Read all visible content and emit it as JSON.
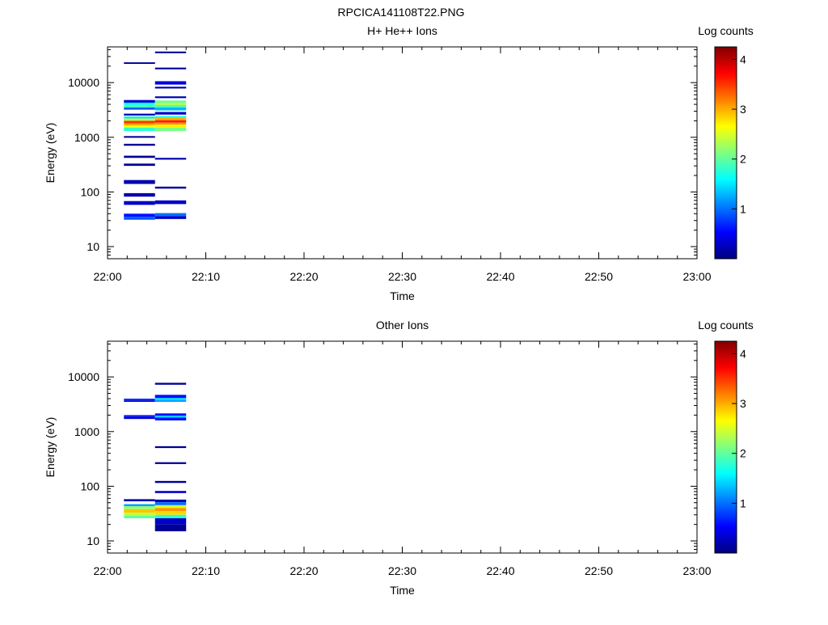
{
  "figure_title": "RPCICA141108T22.PNG",
  "colorbar_ticks": [
    "1",
    "2",
    "3",
    "4"
  ],
  "palette": [
    "#00007f",
    "#0000ff",
    "#007fff",
    "#00ffff",
    "#7fff7f",
    "#ffff00",
    "#ff7f00",
    "#ff0000",
    "#7f0000"
  ],
  "chart_data": [
    {
      "type": "heatmap",
      "title": "H+ He++ Ions",
      "xlabel": "Time",
      "ylabel": "Energy (eV)",
      "colorbar_label": "Log counts",
      "xlim": [
        "22:00",
        "23:00"
      ],
      "x_ticks": [
        "22:00",
        "22:10",
        "22:20",
        "22:30",
        "22:40",
        "22:50",
        "23:00"
      ],
      "ylim": [
        6,
        45000
      ],
      "y_scale": "log",
      "y_ticks": [
        "10",
        "100",
        "1000",
        "10000"
      ],
      "clim": [
        0,
        4.25
      ],
      "columns": [
        {
          "t_start": "22:01:40",
          "t_end": "22:04:50",
          "bins": [
            {
              "e_low": 22000,
              "e_high": 23500,
              "value": 0.1
            },
            {
              "e_low": 4300,
              "e_high": 4800,
              "value": 0.3
            },
            {
              "e_low": 3900,
              "e_high": 4300,
              "value": 1.6
            },
            {
              "e_low": 3500,
              "e_high": 3900,
              "value": 1.9
            },
            {
              "e_low": 3200,
              "e_high": 3500,
              "value": 0.9
            },
            {
              "e_low": 2500,
              "e_high": 2700,
              "value": 0.2
            },
            {
              "e_low": 2200,
              "e_high": 2400,
              "value": 1.5
            },
            {
              "e_low": 2000,
              "e_high": 2200,
              "value": 2.4
            },
            {
              "e_low": 1800,
              "e_high": 2000,
              "value": 3.5
            },
            {
              "e_low": 1650,
              "e_high": 1800,
              "value": 3.0
            },
            {
              "e_low": 1500,
              "e_high": 1650,
              "value": 2.6
            },
            {
              "e_low": 1300,
              "e_high": 1500,
              "value": 1.8
            },
            {
              "e_low": 980,
              "e_high": 1050,
              "value": 0.1
            },
            {
              "e_low": 700,
              "e_high": 760,
              "value": 0.1
            },
            {
              "e_low": 420,
              "e_high": 460,
              "value": 0.1
            },
            {
              "e_low": 300,
              "e_high": 330,
              "value": 0.1
            },
            {
              "e_low": 140,
              "e_high": 165,
              "value": 0.2
            },
            {
              "e_low": 82,
              "e_high": 95,
              "value": 0.2
            },
            {
              "e_low": 58,
              "e_high": 68,
              "value": 0.3
            },
            {
              "e_low": 35,
              "e_high": 40,
              "value": 0.6
            },
            {
              "e_low": 31,
              "e_high": 35,
              "value": 0.9
            }
          ]
        },
        {
          "t_start": "22:04:50",
          "t_end": "22:08:00",
          "bins": [
            {
              "e_low": 34500,
              "e_high": 37000,
              "value": 0.1
            },
            {
              "e_low": 17500,
              "e_high": 18800,
              "value": 0.1
            },
            {
              "e_low": 9200,
              "e_high": 10600,
              "value": 0.4
            },
            {
              "e_low": 7800,
              "e_high": 8400,
              "value": 0.2
            },
            {
              "e_low": 5200,
              "e_high": 5600,
              "value": 0.2
            },
            {
              "e_low": 4300,
              "e_high": 4700,
              "value": 2.0
            },
            {
              "e_low": 3900,
              "e_high": 4300,
              "value": 2.4
            },
            {
              "e_low": 3500,
              "e_high": 3900,
              "value": 1.9
            },
            {
              "e_low": 3100,
              "e_high": 3500,
              "value": 1.3
            },
            {
              "e_low": 2600,
              "e_high": 2900,
              "value": 0.3
            },
            {
              "e_low": 2250,
              "e_high": 2450,
              "value": 1.7
            },
            {
              "e_low": 2050,
              "e_high": 2250,
              "value": 3.0
            },
            {
              "e_low": 1850,
              "e_high": 2050,
              "value": 3.6
            },
            {
              "e_low": 1700,
              "e_high": 1850,
              "value": 3.1
            },
            {
              "e_low": 1500,
              "e_high": 1700,
              "value": 2.7
            },
            {
              "e_low": 1300,
              "e_high": 1500,
              "value": 2.1
            },
            {
              "e_low": 390,
              "e_high": 420,
              "value": 0.2
            },
            {
              "e_low": 115,
              "e_high": 125,
              "value": 0.1
            },
            {
              "e_low": 60,
              "e_high": 70,
              "value": 0.3
            },
            {
              "e_low": 36,
              "e_high": 41,
              "value": 1.0
            },
            {
              "e_low": 32,
              "e_high": 36,
              "value": 0.3
            }
          ]
        }
      ]
    },
    {
      "type": "heatmap",
      "title": "Other Ions",
      "xlabel": "Time",
      "ylabel": "Energy (eV)",
      "colorbar_label": "Log counts",
      "xlim": [
        "22:00",
        "23:00"
      ],
      "x_ticks": [
        "22:00",
        "22:10",
        "22:20",
        "22:30",
        "22:40",
        "22:50",
        "23:00"
      ],
      "ylim": [
        6,
        45000
      ],
      "y_scale": "log",
      "y_ticks": [
        "10",
        "100",
        "1000",
        "10000"
      ],
      "clim": [
        0,
        4.25
      ],
      "columns": [
        {
          "t_start": "22:01:40",
          "t_end": "22:04:50",
          "bins": [
            {
              "e_low": 3700,
              "e_high": 4000,
              "value": 0.7
            },
            {
              "e_low": 3500,
              "e_high": 3700,
              "value": 0.3
            },
            {
              "e_low": 1850,
              "e_high": 2000,
              "value": 0.6
            },
            {
              "e_low": 1700,
              "e_high": 1850,
              "value": 0.3
            },
            {
              "e_low": 53,
              "e_high": 58,
              "value": 0.2
            },
            {
              "e_low": 43,
              "e_high": 47,
              "value": 1.2
            },
            {
              "e_low": 38,
              "e_high": 43,
              "value": 2.2
            },
            {
              "e_low": 33,
              "e_high": 38,
              "value": 2.9
            },
            {
              "e_low": 29,
              "e_high": 33,
              "value": 2.4
            },
            {
              "e_low": 26,
              "e_high": 29,
              "value": 2.0
            }
          ]
        },
        {
          "t_start": "22:04:50",
          "t_end": "22:08:00",
          "bins": [
            {
              "e_low": 7200,
              "e_high": 7800,
              "value": 0.1
            },
            {
              "e_low": 4100,
              "e_high": 4700,
              "value": 0.6
            },
            {
              "e_low": 3800,
              "e_high": 4100,
              "value": 1.5
            },
            {
              "e_low": 3500,
              "e_high": 3800,
              "value": 1.2
            },
            {
              "e_low": 1950,
              "e_high": 2150,
              "value": 0.6
            },
            {
              "e_low": 1800,
              "e_high": 1950,
              "value": 1.4
            },
            {
              "e_low": 1600,
              "e_high": 1800,
              "value": 0.6
            },
            {
              "e_low": 500,
              "e_high": 540,
              "value": 0.1
            },
            {
              "e_low": 255,
              "e_high": 275,
              "value": 0.1
            },
            {
              "e_low": 115,
              "e_high": 125,
              "value": 0.1
            },
            {
              "e_low": 75,
              "e_high": 82,
              "value": 0.3
            },
            {
              "e_low": 51,
              "e_high": 57,
              "value": 0.2
            },
            {
              "e_low": 45,
              "e_high": 51,
              "value": 1.0
            },
            {
              "e_low": 40,
              "e_high": 45,
              "value": 2.5
            },
            {
              "e_low": 35,
              "e_high": 40,
              "value": 3.1
            },
            {
              "e_low": 30,
              "e_high": 35,
              "value": 2.8
            },
            {
              "e_low": 26,
              "e_high": 30,
              "value": 1.8
            },
            {
              "e_low": 20,
              "e_high": 26,
              "value": 0.3
            },
            {
              "e_low": 15,
              "e_high": 20,
              "value": 0.1
            }
          ]
        }
      ]
    }
  ]
}
